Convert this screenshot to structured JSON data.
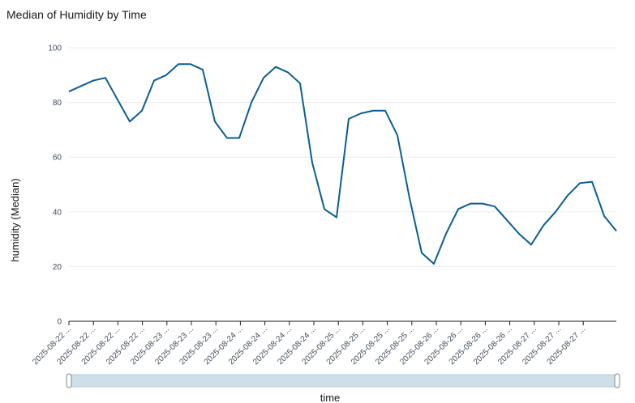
{
  "title": "Median of Humidity by Time",
  "colors": {
    "series": "#0b5e93",
    "grid": "#e9ebed",
    "axis": "#16191f",
    "scrollbar": "#cfdfe8"
  },
  "chart_data": {
    "type": "line",
    "title": "Median of Humidity by Time",
    "xlabel": "time",
    "ylabel": "humidity (Median)",
    "ylim": [
      0,
      100
    ],
    "yticks": [
      0,
      20,
      40,
      60,
      80,
      100
    ],
    "grid": true,
    "x_tick_labels": [
      "2025-08-22 ...",
      "2025-08-22 ...",
      "2025-08-22 ...",
      "2025-08-22 ...",
      "2025-08-23 ...",
      "2025-08-23 ...",
      "2025-08-23 ...",
      "2025-08-24 ...",
      "2025-08-24 ...",
      "2025-08-24 ...",
      "2025-08-24 ...",
      "2025-08-25 ...",
      "2025-08-25 ...",
      "2025-08-25 ...",
      "2025-08-25 ...",
      "2025-08-26 ...",
      "2025-08-26 ...",
      "2025-08-26 ...",
      "2025-08-26 ...",
      "2025-08-27 ...",
      "2025-08-27 ...",
      "2025-08-27 ..."
    ],
    "series": [
      {
        "values": [
          84,
          86,
          88,
          89,
          81,
          73,
          77,
          88,
          90,
          94,
          94,
          92,
          73,
          67,
          67,
          80,
          89,
          93,
          91,
          87,
          58,
          41,
          38,
          74,
          76,
          77,
          77,
          68,
          45,
          25,
          21,
          32,
          41,
          43,
          43,
          42,
          37,
          32,
          28,
          35,
          40,
          46,
          50.5,
          51,
          38.5,
          33
        ]
      }
    ]
  }
}
